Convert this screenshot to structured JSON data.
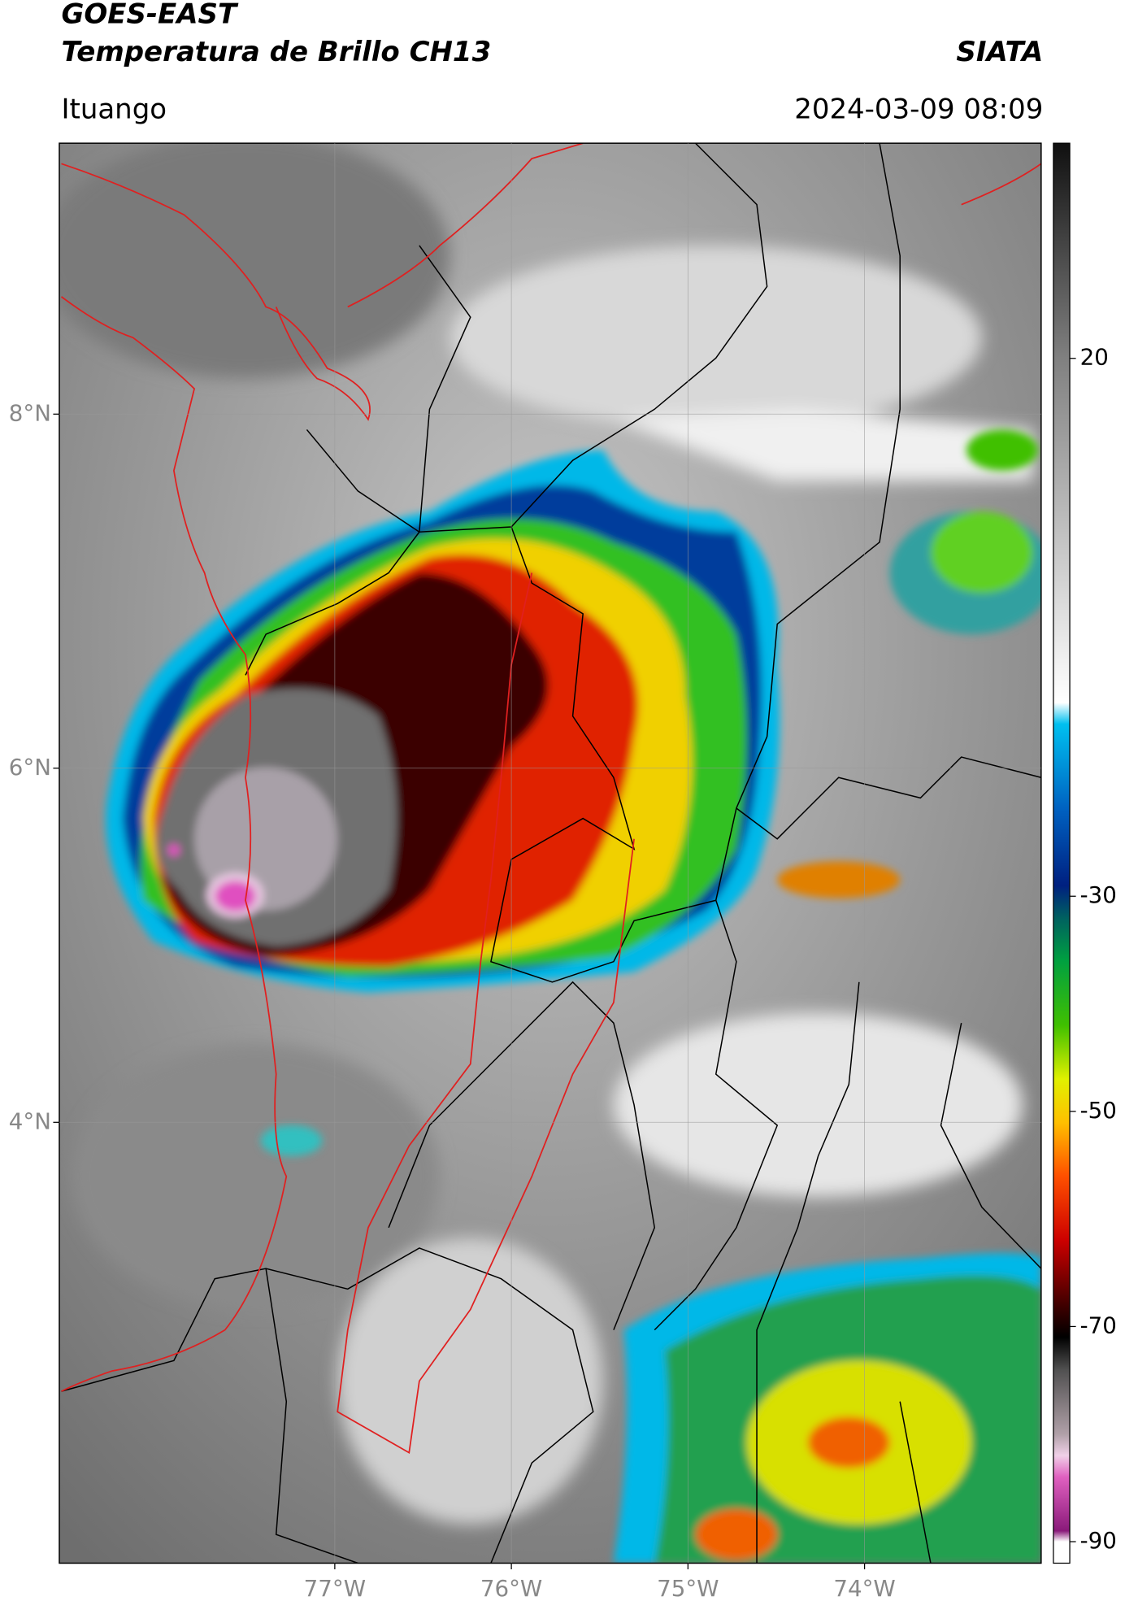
{
  "header": {
    "title": "GOES-EAST",
    "subtitle": "Temperatura de Brillo CH13",
    "brand": "SIATA",
    "location": "Ituango",
    "datetime": "2024-03-09 08:09"
  },
  "map": {
    "xlim": [
      -78.56,
      -73.0
    ],
    "ylim": [
      1.51,
      9.53
    ],
    "xticks": [
      {
        "value": -77,
        "label": "77°W"
      },
      {
        "value": -76,
        "label": "76°W"
      },
      {
        "value": -75,
        "label": "75°W"
      },
      {
        "value": -74,
        "label": "74°W"
      }
    ],
    "yticks": [
      {
        "value": 4,
        "label": "4°N"
      },
      {
        "value": 6,
        "label": "6°N"
      },
      {
        "value": 8,
        "label": "8°N"
      }
    ],
    "grid": true
  },
  "colorbar": {
    "clim": [
      -92,
      40
    ],
    "ticks": [
      -90,
      -70,
      -50,
      -30,
      20
    ],
    "colormap": [
      {
        "value": -92,
        "color": "#ffffff"
      },
      {
        "value": -90,
        "color": "#ffffff"
      },
      {
        "value": -89,
        "color": "#8a1a7a"
      },
      {
        "value": -84,
        "color": "#e060c0"
      },
      {
        "value": -82,
        "color": "#f0d0e8"
      },
      {
        "value": -80,
        "color": "#b0a0a8"
      },
      {
        "value": -74,
        "color": "#505050"
      },
      {
        "value": -71,
        "color": "#000000"
      },
      {
        "value": -68,
        "color": "#400000"
      },
      {
        "value": -62,
        "color": "#cc0000"
      },
      {
        "value": -56,
        "color": "#ff5000"
      },
      {
        "value": -51,
        "color": "#ffc000"
      },
      {
        "value": -47,
        "color": "#e0f000"
      },
      {
        "value": -42,
        "color": "#40c000"
      },
      {
        "value": -36,
        "color": "#00a040"
      },
      {
        "value": -32,
        "color": "#006060"
      },
      {
        "value": -29,
        "color": "#002080"
      },
      {
        "value": -22,
        "color": "#0060c0"
      },
      {
        "value": -14,
        "color": "#00c0f0"
      },
      {
        "value": -12,
        "color": "#ffffff"
      },
      {
        "value": 0,
        "color": "#d0d0d0"
      },
      {
        "value": 20,
        "color": "#808080"
      },
      {
        "value": 40,
        "color": "#101010"
      }
    ]
  }
}
